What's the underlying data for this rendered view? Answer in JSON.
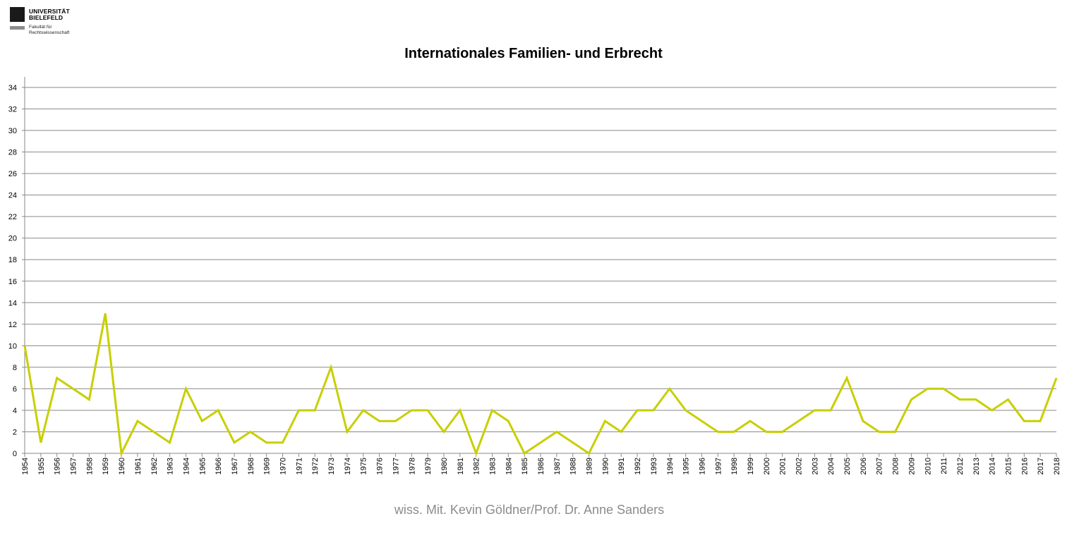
{
  "logo": {
    "line1": "UNIVERSITÄT",
    "line2": "BIELEFELD",
    "faculty1": "Fakultät für",
    "faculty2": "Rechtswissenschaft"
  },
  "footer": "wiss. Mit. Kevin Göldner/Prof.  Dr. Anne Sanders",
  "chart_data": {
    "type": "line",
    "title": "Internationales Familien- und Erbrecht",
    "xlabel": "",
    "ylabel": "",
    "ylim": [
      0,
      34
    ],
    "yticks": [
      0,
      2,
      4,
      6,
      8,
      10,
      12,
      14,
      16,
      18,
      20,
      22,
      24,
      26,
      28,
      30,
      32,
      34
    ],
    "grid": true,
    "color": "#c8cf00",
    "categories": [
      "1954",
      "1955",
      "1956",
      "1957",
      "1958",
      "1959",
      "1960",
      "1961",
      "1962",
      "1963",
      "1964",
      "1965",
      "1966",
      "1967",
      "1968",
      "1969",
      "1970",
      "1971",
      "1972",
      "1973",
      "1974",
      "1975",
      "1976",
      "1977",
      "1978",
      "1979",
      "1980",
      "1981",
      "1982",
      "1983",
      "1984",
      "1985",
      "1986",
      "1987",
      "1988",
      "1989",
      "1990",
      "1991",
      "1992",
      "1993",
      "1994",
      "1995",
      "1996",
      "1997",
      "1998",
      "1999",
      "2000",
      "2001",
      "2002",
      "2003",
      "2004",
      "2005",
      "2006",
      "2007",
      "2008",
      "2009",
      "2010",
      "2011",
      "2012",
      "2013",
      "2014",
      "2015",
      "2016",
      "2017",
      "2018"
    ],
    "series": [
      {
        "values": [
          10,
          1,
          7,
          6,
          5,
          13,
          0,
          3,
          2,
          1,
          6,
          3,
          4,
          1,
          2,
          1,
          1,
          4,
          4,
          8,
          2,
          4,
          3,
          3,
          4,
          4,
          2,
          4,
          0,
          4,
          3,
          0,
          1,
          2,
          1,
          0,
          3,
          2,
          4,
          4,
          6,
          4,
          3,
          2,
          2,
          3,
          2,
          2,
          3,
          4,
          4,
          7,
          3,
          2,
          2,
          5,
          6,
          6,
          5,
          5,
          4,
          5,
          3,
          3,
          7
        ]
      }
    ]
  }
}
